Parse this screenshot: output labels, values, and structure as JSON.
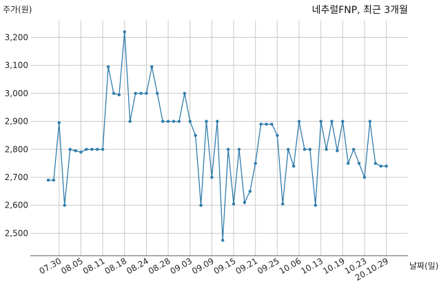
{
  "chart_data": {
    "type": "line",
    "title": "네추럴FNP, 최근 3개월",
    "ylabel": "주가(원)",
    "xlabel": "날짜(일)",
    "ylim": [
      2420,
      3260
    ],
    "yticks": [
      2500,
      2600,
      2700,
      2800,
      2900,
      3000,
      3100,
      3200
    ],
    "ytick_labels": [
      "2,500",
      "2,600",
      "2,700",
      "2,800",
      "2,900",
      "3,000",
      "3,100",
      "3,200"
    ],
    "grid": true,
    "xtick_labels": [
      "07.30",
      "08.05",
      "08.11",
      "08.18",
      "08.24",
      "08.28",
      "09.03",
      "09.09",
      "09.15",
      "09.21",
      "09.25",
      "10.06",
      "10.13",
      "10.19",
      "10.23",
      "20.10.29"
    ],
    "xtick_indices": [
      2,
      6,
      10,
      14,
      18,
      22,
      26,
      30,
      34,
      38,
      42,
      46,
      50,
      54,
      58,
      62
    ],
    "series": [
      {
        "values": [
          2690,
          2690,
          2895,
          2600,
          2800,
          2795,
          2790,
          2800,
          2800,
          2800,
          2800,
          3095,
          3000,
          2995,
          3220,
          2900,
          3000,
          3000,
          3000,
          3095,
          3000,
          2900,
          2900,
          2900,
          2900,
          3000,
          2900,
          2850,
          2600,
          2900,
          2700,
          2900,
          2475,
          2800,
          2605,
          2800,
          2610,
          2650,
          2750,
          2890,
          2890,
          2890,
          2850,
          2605,
          2800,
          2740,
          2900,
          2800,
          2800,
          2600,
          2900,
          2800,
          2900,
          2795,
          2900,
          2750,
          2800,
          2750,
          2700,
          2900,
          2750,
          2740,
          2740
        ]
      }
    ]
  }
}
